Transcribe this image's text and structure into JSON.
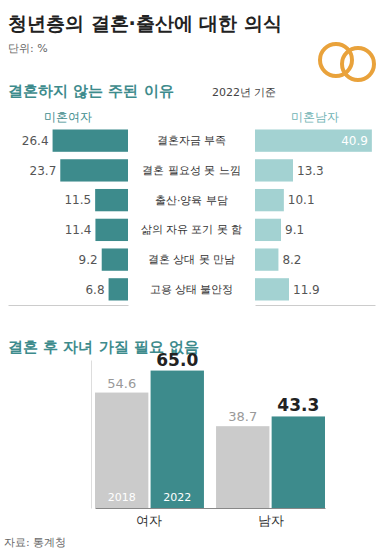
{
  "title": "청년층의 결혼·출산에 대한 의식",
  "unit": "단위: %",
  "source": "자료: 통계청",
  "chart_data": [
    {
      "type": "bar",
      "orientation": "horizontal",
      "title": "결혼하지 않는 주된 이유",
      "subtitle": "2022년 기준",
      "categories": [
        "결혼자금 부족",
        "결혼 필요성 못 느낌",
        "출산·양육 부담",
        "삶의 자유 포기 못 함",
        "결혼 상대 못 만남",
        "고용 상태 불안정"
      ],
      "series": [
        {
          "name": "미혼여자",
          "color": "#3d8b8c",
          "values": [
            26.4,
            23.7,
            11.5,
            11.4,
            9.2,
            6.8
          ]
        },
        {
          "name": "미혼남자",
          "color": "#a3d2d2",
          "values": [
            40.9,
            13.3,
            10.1,
            9.1,
            8.2,
            11.9
          ]
        }
      ],
      "xlim": [
        0,
        42
      ],
      "data_labels": true,
      "tick_labels": "y"
    },
    {
      "type": "bar",
      "title": "결혼 후 자녀 가질 필요 없음",
      "categories": [
        "여자",
        "남자"
      ],
      "series": [
        {
          "name": "2018",
          "color": "#cbcbcb",
          "values": [
            54.6,
            38.7
          ],
          "value_labels": [
            "54.6",
            "38.7"
          ]
        },
        {
          "name": "2022",
          "color": "#3d8b8c",
          "values": [
            65.0,
            43.3
          ],
          "value_labels": [
            "65.0",
            "43.3"
          ]
        }
      ],
      "ylim": [
        0,
        70
      ],
      "data_labels": true,
      "tick_labels": "x"
    }
  ]
}
